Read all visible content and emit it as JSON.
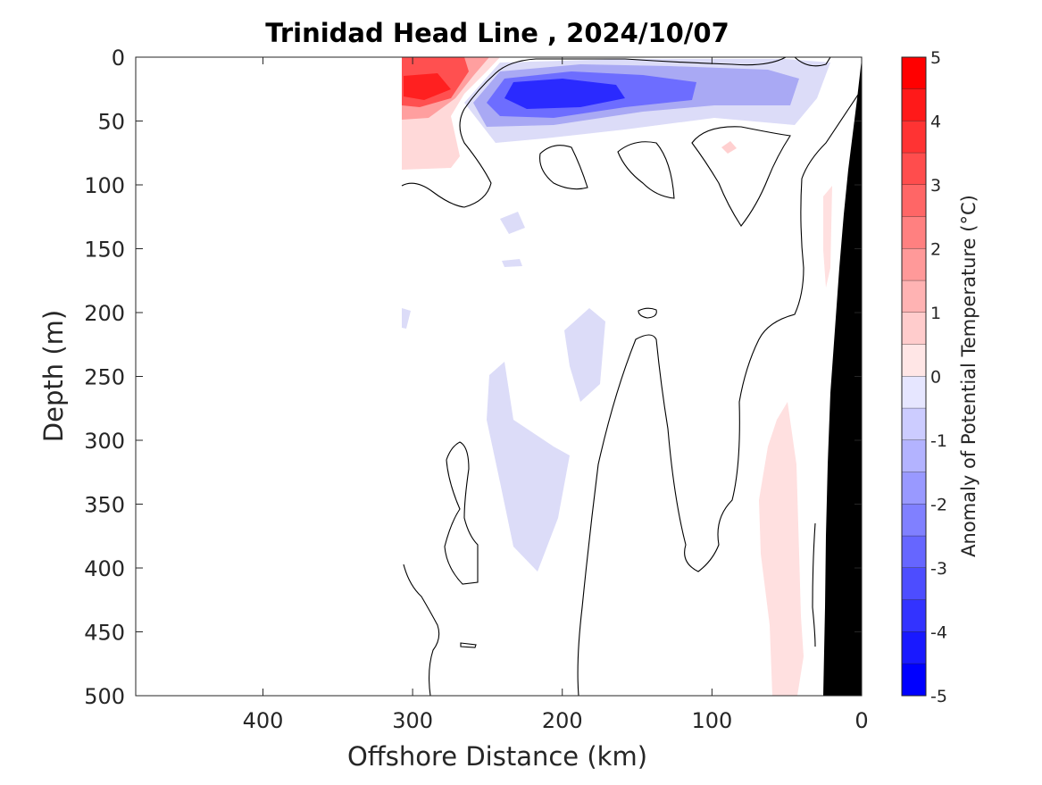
{
  "chart_data": {
    "type": "heatmap",
    "title": "Trinidad Head Line , 2024/10/07",
    "xlabel": "Offshore Distance (km)",
    "ylabel": "Depth (m)",
    "xlim": [
      485,
      0
    ],
    "ylim": [
      0,
      500
    ],
    "x_reversed": true,
    "y_reversed": true,
    "x_ticks": [
      400,
      300,
      200,
      100,
      0
    ],
    "y_ticks": [
      0,
      50,
      100,
      150,
      200,
      250,
      300,
      350,
      400,
      450,
      500
    ],
    "colorbar": {
      "label": "Anomaly of Potential Temperature (°C)",
      "range": [
        -5,
        5
      ],
      "step": 0.5,
      "ticks": [
        5,
        4,
        3,
        2,
        1,
        0,
        -1,
        -2,
        -3,
        -4,
        -5
      ],
      "colormap": "blue-white-red"
    },
    "data_extent_km": [
      0,
      310
    ],
    "features": [
      {
        "name": "warm near-surface core",
        "x_center_km": 290,
        "depth_center_m": 22,
        "anomaly": 3.5
      },
      {
        "name": "cold subsurface core",
        "x_center_km": 215,
        "depth_center_m": 30,
        "anomaly": -4.0
      },
      {
        "name": "cold patch",
        "x_center_km": 125,
        "depth_center_m": 28,
        "anomaly": -1.5
      },
      {
        "name": "weak cold lens",
        "x_center_km": 240,
        "depth_center_m": 350,
        "anomaly": -0.6
      },
      {
        "name": "weak cold lens",
        "x_center_km": 210,
        "depth_center_m": 230,
        "anomaly": -0.6
      },
      {
        "name": "weak warm band",
        "x_center_km": 55,
        "depth_center_m": 400,
        "anomaly": 0.6
      }
    ],
    "bathymetry": "shelf/slope shown in black near 0 km",
    "colors": {
      "bathymetry": "#000000",
      "contour": "#000000"
    }
  }
}
